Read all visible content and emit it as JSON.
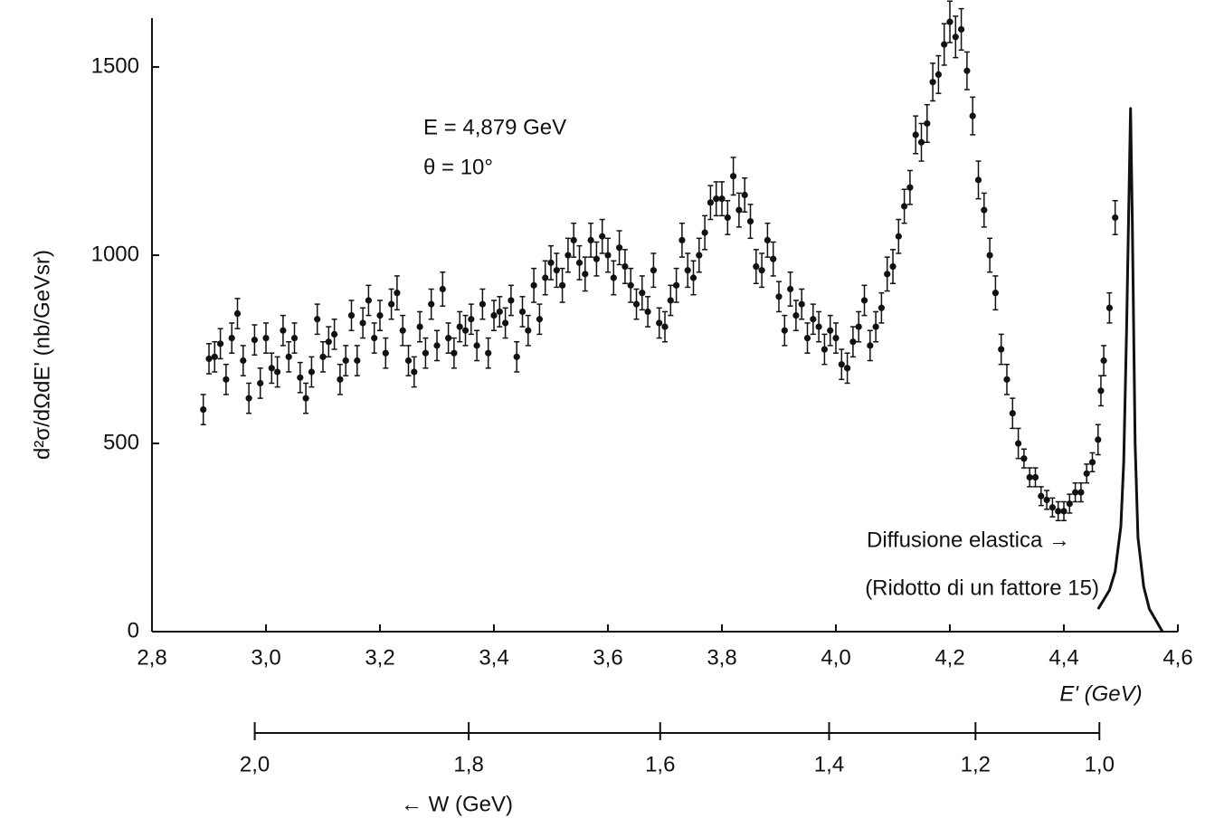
{
  "chart_data": {
    "type": "scatter",
    "xlim": [
      2.8,
      4.6
    ],
    "ylim": [
      0,
      1630
    ],
    "xticks": [
      {
        "value": 2.8,
        "label": "2,8"
      },
      {
        "value": 3.0,
        "label": "3,0"
      },
      {
        "value": 3.2,
        "label": "3,2"
      },
      {
        "value": 3.4,
        "label": "3,4"
      },
      {
        "value": 3.6,
        "label": "3,6"
      },
      {
        "value": 3.8,
        "label": "3,8"
      },
      {
        "value": 4.0,
        "label": "4,0"
      },
      {
        "value": 4.2,
        "label": "4,2"
      },
      {
        "value": 4.4,
        "label": "4,4"
      },
      {
        "value": 4.6,
        "label": "4,6"
      }
    ],
    "yticks": [
      0,
      500,
      1000,
      1500
    ],
    "x2ticks": [
      {
        "value": 2.0,
        "label": "2,0"
      },
      {
        "value": 1.8,
        "label": "1,8"
      },
      {
        "value": 1.6,
        "label": "1,6"
      },
      {
        "value": 1.4,
        "label": "1,4"
      },
      {
        "value": 1.2,
        "label": "1,2"
      },
      {
        "value": 1.0,
        "label": "1,0"
      }
    ],
    "xlabel": "E' (GeV)",
    "x2label": "← W (GeV)",
    "ylabel": "d²σ/dΩdE' (nb/GeVsr)",
    "annotations": [
      {
        "text": "E = 4,879 GeV",
        "value": 4.879
      },
      {
        "text": "θ = 10°",
        "value": 10
      }
    ],
    "notes": [
      "Diffusione elastica →",
      "(Ridotto di un fattore 15)"
    ],
    "series": [
      {
        "type": "scatter",
        "color": "#111111",
        "x": [
          2.89,
          2.9,
          2.91,
          2.92,
          2.93,
          2.94,
          2.95,
          2.96,
          2.97,
          2.98,
          2.99,
          3.0,
          3.01,
          3.02,
          3.03,
          3.04,
          3.05,
          3.06,
          3.07,
          3.08,
          3.09,
          3.1,
          3.11,
          3.12,
          3.13,
          3.14,
          3.15,
          3.16,
          3.17,
          3.18,
          3.19,
          3.2,
          3.21,
          3.22,
          3.23,
          3.24,
          3.25,
          3.26,
          3.27,
          3.28,
          3.29,
          3.3,
          3.31,
          3.32,
          3.33,
          3.34,
          3.35,
          3.36,
          3.37,
          3.38,
          3.39,
          3.4,
          3.41,
          3.42,
          3.43,
          3.44,
          3.45,
          3.46,
          3.47,
          3.48,
          3.49,
          3.5,
          3.51,
          3.52,
          3.53,
          3.54,
          3.55,
          3.56,
          3.57,
          3.58,
          3.59,
          3.6,
          3.61,
          3.62,
          3.63,
          3.64,
          3.65,
          3.66,
          3.67,
          3.68,
          3.69,
          3.7,
          3.71,
          3.72,
          3.73,
          3.74,
          3.75,
          3.76,
          3.77,
          3.78,
          3.79,
          3.8,
          3.81,
          3.82,
          3.83,
          3.84,
          3.85,
          3.86,
          3.87,
          3.88,
          3.89,
          3.9,
          3.91,
          3.92,
          3.93,
          3.94,
          3.95,
          3.96,
          3.97,
          3.98,
          3.99,
          4.0,
          4.01,
          4.02,
          4.03,
          4.04,
          4.05,
          4.06,
          4.07,
          4.08,
          4.09,
          4.1,
          4.11,
          4.12,
          4.13,
          4.14,
          4.15,
          4.16,
          4.17,
          4.18,
          4.19,
          4.2,
          4.21,
          4.22,
          4.23,
          4.24,
          4.25,
          4.26,
          4.27,
          4.28,
          4.29,
          4.3,
          4.31,
          4.32,
          4.33,
          4.34,
          4.35,
          4.36,
          4.37,
          4.38,
          4.39,
          4.4,
          4.41,
          4.42,
          4.43,
          4.44,
          4.45,
          4.46,
          4.465,
          4.47,
          4.48,
          4.49
        ],
        "values": [
          590,
          725,
          730,
          765,
          670,
          780,
          845,
          720,
          620,
          775,
          660,
          780,
          700,
          690,
          800,
          730,
          780,
          675,
          620,
          690,
          830,
          730,
          770,
          790,
          670,
          720,
          840,
          720,
          820,
          880,
          780,
          840,
          740,
          870,
          900,
          800,
          720,
          690,
          810,
          740,
          870,
          760,
          910,
          780,
          740,
          810,
          800,
          830,
          760,
          870,
          740,
          840,
          850,
          820,
          880,
          730,
          850,
          800,
          920,
          830,
          940,
          980,
          960,
          920,
          1000,
          1040,
          980,
          950,
          1040,
          990,
          1050,
          1000,
          940,
          1020,
          970,
          920,
          870,
          900,
          850,
          960,
          820,
          810,
          880,
          920,
          1040,
          960,
          940,
          1000,
          1060,
          1140,
          1150,
          1150,
          1100,
          1210,
          1120,
          1160,
          1090,
          970,
          960,
          1040,
          990,
          890,
          800,
          910,
          840,
          870,
          780,
          830,
          810,
          750,
          800,
          780,
          710,
          700,
          770,
          810,
          880,
          760,
          810,
          860,
          950,
          970,
          1050,
          1130,
          1180,
          1320,
          1300,
          1350,
          1460,
          1480,
          1560,
          1620,
          1580,
          1600,
          1490,
          1370,
          1200,
          1120,
          1000,
          900,
          750,
          670,
          580,
          500,
          460,
          410,
          410,
          360,
          350,
          330,
          320,
          320,
          340,
          370,
          370,
          420,
          450,
          510,
          640,
          720,
          860,
          1100
        ],
        "errors": [
          40,
          40,
          40,
          40,
          40,
          40,
          40,
          40,
          40,
          40,
          40,
          40,
          40,
          40,
          40,
          40,
          40,
          40,
          40,
          40,
          40,
          40,
          40,
          40,
          40,
          40,
          40,
          40,
          40,
          40,
          40,
          40,
          40,
          40,
          45,
          40,
          40,
          40,
          40,
          40,
          40,
          40,
          45,
          40,
          40,
          40,
          40,
          40,
          40,
          40,
          40,
          40,
          40,
          40,
          40,
          40,
          40,
          40,
          45,
          40,
          45,
          45,
          45,
          45,
          45,
          45,
          45,
          45,
          45,
          45,
          45,
          45,
          45,
          45,
          45,
          45,
          40,
          45,
          40,
          45,
          40,
          40,
          40,
          45,
          45,
          45,
          45,
          45,
          45,
          45,
          45,
          45,
          45,
          50,
          45,
          45,
          45,
          45,
          45,
          45,
          45,
          40,
          40,
          45,
          40,
          40,
          40,
          40,
          40,
          40,
          40,
          40,
          40,
          40,
          40,
          40,
          40,
          40,
          40,
          40,
          45,
          45,
          45,
          45,
          45,
          50,
          50,
          50,
          50,
          50,
          55,
          55,
          55,
          55,
          50,
          50,
          50,
          45,
          45,
          45,
          40,
          40,
          40,
          40,
          25,
          25,
          25,
          25,
          25,
          25,
          25,
          25,
          25,
          25,
          25,
          25,
          25,
          40,
          40,
          40,
          40,
          45
        ]
      },
      {
        "type": "line",
        "color": "#111111",
        "x": [
          4.46,
          4.48,
          4.49,
          4.5,
          4.505,
          4.51,
          4.517,
          4.52,
          4.525,
          4.53,
          4.54,
          4.55,
          4.573
        ],
        "values": [
          60,
          110,
          160,
          280,
          450,
          800,
          1390,
          1100,
          500,
          250,
          120,
          60,
          0
        ]
      }
    ]
  }
}
